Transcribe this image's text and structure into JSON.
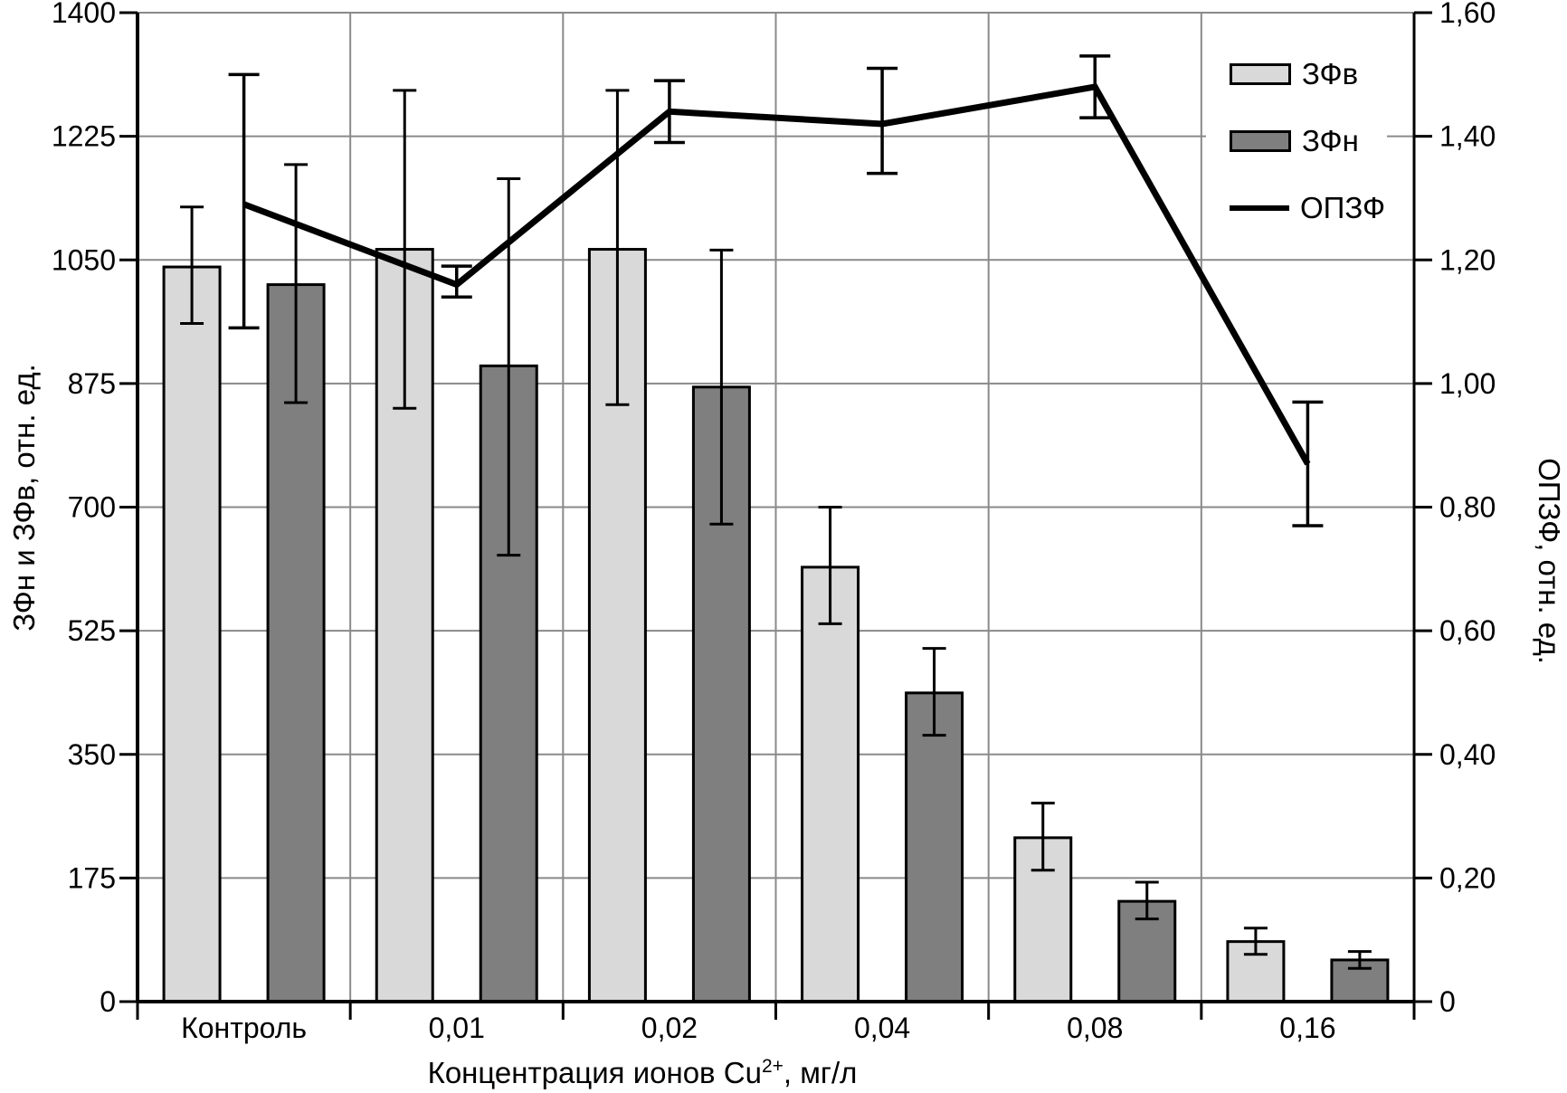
{
  "chart_data": {
    "type": "combo-bar-line",
    "title": "",
    "categories": [
      "Контроль",
      "0,01",
      "0,02",
      "0,04",
      "0,08",
      "0,16"
    ],
    "x_axis": {
      "title_main": "Концентрация ионов Cu",
      "title_sup": "2+",
      "title_rest": ", мг/л"
    },
    "left_axis": {
      "title": "ЗФн и ЗФв, отн. ед.",
      "min": 0,
      "max": 1400,
      "step": 175,
      "tick_labels": [
        "0",
        "175",
        "350",
        "525",
        "700",
        "875",
        "1050",
        "1225",
        "1400"
      ]
    },
    "right_axis": {
      "title": "ОПЗФ, отн. ед.",
      "min": 0,
      "max": 1.6,
      "step": 0.2,
      "tick_labels": [
        "0",
        "0,20",
        "0,40",
        "0,60",
        "0,80",
        "1,00",
        "1,20",
        "1,40",
        "1,60"
      ]
    },
    "grid": true,
    "legend_position": "inside-top-right",
    "bar_series": [
      {
        "name": "ЗФв",
        "color": "#d9d9d9",
        "values": [
          1040,
          1065,
          1065,
          615,
          232,
          85
        ],
        "err_low": [
          960,
          840,
          845,
          535,
          186,
          67
        ],
        "err_high": [
          1125,
          1290,
          1290,
          700,
          281,
          104
        ]
      },
      {
        "name": "ЗФн",
        "color": "#7f7f7f",
        "values": [
          1015,
          900,
          870,
          437,
          142,
          59
        ],
        "err_low": [
          848,
          632,
          676,
          377,
          117,
          47
        ],
        "err_high": [
          1185,
          1165,
          1064,
          500,
          169,
          71
        ]
      }
    ],
    "line_series": {
      "name": "ОПЗФ",
      "color": "#000000",
      "axis": "right",
      "values": [
        1.29,
        1.16,
        1.44,
        1.42,
        1.48,
        0.87
      ],
      "err_low": [
        1.09,
        1.14,
        1.39,
        1.34,
        1.43,
        0.77
      ],
      "err_high": [
        1.5,
        1.19,
        1.49,
        1.51,
        1.53,
        0.97
      ]
    }
  },
  "colors": {
    "bar_light": "#d9d9d9",
    "bar_dark": "#7f7f7f",
    "line": "#000000",
    "grid": "#8a8a8a",
    "axis": "#000000",
    "background": "#ffffff"
  }
}
